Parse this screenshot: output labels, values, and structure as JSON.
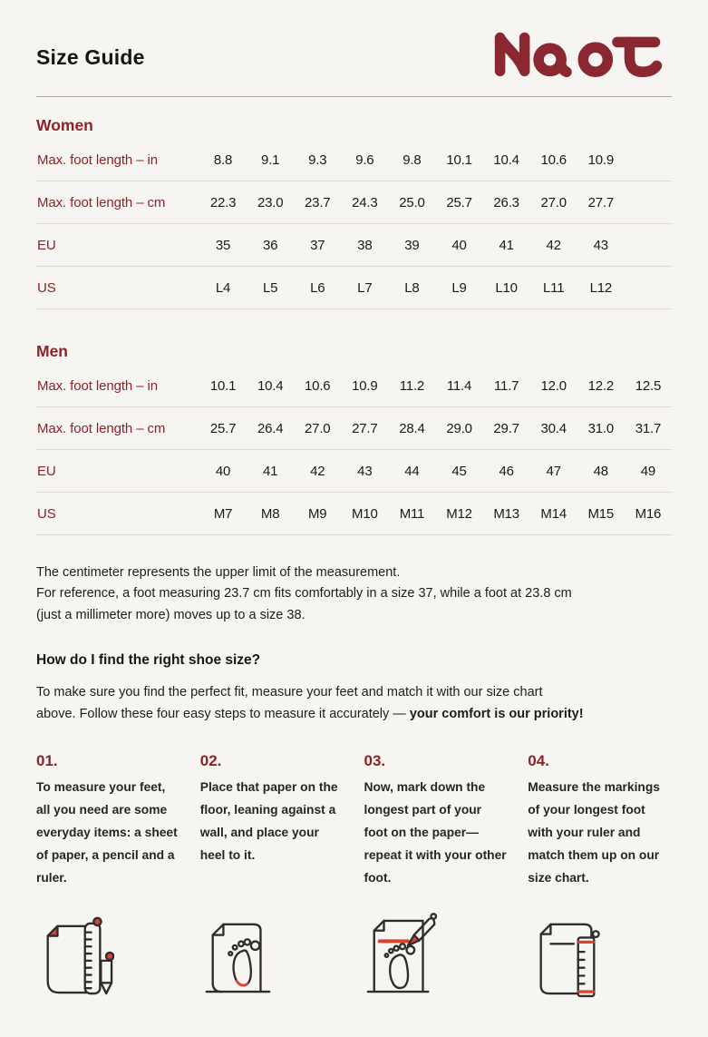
{
  "page": {
    "title": "Size Guide",
    "brand": "Naot"
  },
  "colors": {
    "background": "#f7f5f2",
    "brand_maroon": "#8b2328",
    "accent_red": "#d8452f",
    "text": "#1d1d1d",
    "table_divider": "#ddd9d4",
    "header_rule": "#aca9a5"
  },
  "women": {
    "heading": "Women",
    "rows": [
      {
        "label": "Max. foot length – in",
        "values": [
          "8.8",
          "9.1",
          "9.3",
          "9.6",
          "9.8",
          "10.1",
          "10.4",
          "10.6",
          "10.9"
        ]
      },
      {
        "label": "Max. foot length – cm",
        "values": [
          "22.3",
          "23.0",
          "23.7",
          "24.3",
          "25.0",
          "25.7",
          "26.3",
          "27.0",
          "27.7"
        ]
      },
      {
        "label": "EU",
        "values": [
          "35",
          "36",
          "37",
          "38",
          "39",
          "40",
          "41",
          "42",
          "43"
        ]
      },
      {
        "label": "US",
        "values": [
          "L4",
          "L5",
          "L6",
          "L7",
          "L8",
          "L9",
          "L10",
          "L11",
          "L12"
        ]
      }
    ]
  },
  "men": {
    "heading": "Men",
    "rows": [
      {
        "label": "Max. foot length – in",
        "values": [
          "10.1",
          "10.4",
          "10.6",
          "10.9",
          "11.2",
          "11.4",
          "11.7",
          "12.0",
          "12.2",
          "12.5"
        ]
      },
      {
        "label": "Max. foot length – cm",
        "values": [
          "25.7",
          "26.4",
          "27.0",
          "27.7",
          "28.4",
          "29.0",
          "29.7",
          "30.4",
          "31.0",
          "31.7"
        ]
      },
      {
        "label": "EU",
        "values": [
          "40",
          "41",
          "42",
          "43",
          "44",
          "45",
          "46",
          "47",
          "48",
          "49"
        ]
      },
      {
        "label": "US",
        "values": [
          "M7",
          "M8",
          "M9",
          "M10",
          "M11",
          "M12",
          "M13",
          "M14",
          "M15",
          "M16"
        ]
      }
    ]
  },
  "notes": {
    "text": "The centimeter represents the upper limit of the measurement.\nFor reference, a foot measuring 23.7 cm fits comfortably in a size 37, while a foot at 23.8 cm\n(just a millimeter more) moves up to a size 38."
  },
  "howto": {
    "heading": "How do I find the right shoe size?",
    "intro_normal": "To make sure you find the perfect fit, measure your feet and match it with our size chart\nabove. Follow these four easy steps to measure it accurately — ",
    "intro_bold": "your comfort is our priority!"
  },
  "steps": [
    {
      "number": "01.",
      "text": "To measure your feet, all you need are some everyday items: a sheet of paper, a pencil and a ruler.",
      "icon": "paper-ruler-pencil-icon"
    },
    {
      "number": "02.",
      "text": "Place that paper on the floor, leaning against a wall, and place your heel to it.",
      "icon": "paper-footprint-heel-icon"
    },
    {
      "number": "03.",
      "text": "Now, mark down the longest part of your foot on the paper—repeat it with your other foot.",
      "icon": "paper-mark-pencil-icon"
    },
    {
      "number": "04.",
      "text": "Measure the markings of your longest foot with your ruler and match them up on our size chart.",
      "icon": "paper-ruler-measure-icon"
    }
  ]
}
